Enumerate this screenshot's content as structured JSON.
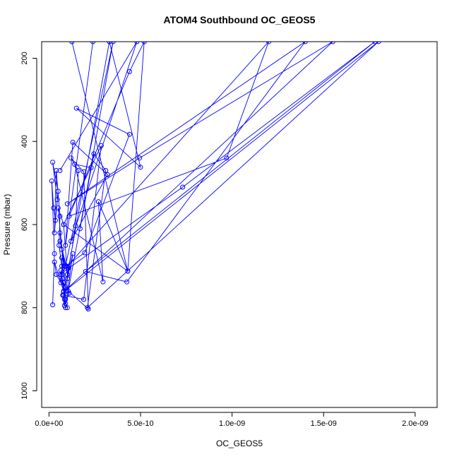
{
  "chart_data": {
    "type": "line",
    "title": "ATOM4 Southbound OC_GEOS5",
    "xlabel": "OC_GEOS5",
    "ylabel": "Pressure (mbar)",
    "xlim": [
      -4e-11,
      2.12e-09
    ],
    "ylim": [
      1040,
      160
    ],
    "y_reversed": true,
    "x_ticks": [
      0,
      5e-10,
      1e-09,
      1.5e-09,
      2e-09
    ],
    "x_tick_labels": [
      "0.0e+00",
      "5.0e-10",
      "1.0e-09",
      "1.5e-09",
      "2.0e-09"
    ],
    "y_ticks": [
      200,
      400,
      600,
      800,
      1000
    ],
    "y_tick_labels": [
      "200",
      "400",
      "600",
      "800",
      "1000"
    ],
    "grid": false,
    "legend": "none",
    "series_color": "#0000ff",
    "marker": "open-circle",
    "series": [
      {
        "x": [
          9e-11,
          1.3e-10,
          1e-10,
          1.45e-10,
          1.6e-10,
          1.2e-10,
          1.9e-10,
          2.15e-10,
          1.05e-10,
          2.3e-10,
          1.4e-10,
          2.95e-10,
          2.7e-10,
          4.3e-10,
          5.2e-10,
          4.4e-10,
          1.1e-10,
          9.7e-10,
          1.2e-09,
          6e-11,
          7.3e-10,
          1.78e-09,
          2e-10,
          4.25e-10,
          1.4e-09,
          1e-10,
          4.95e-10,
          1.55e-09,
          8e-11,
          1.8e-09,
          2.1e-10,
          3.1e-10,
          2.45e-10,
          1.7e-10,
          3.5e-10,
          9e-11,
          1.95e-10,
          4.4e-10,
          1.5e-10,
          5e-10,
          3.3e-10,
          8e-11,
          1.9e-10,
          2.85e-10,
          8e-11,
          4.3e-10,
          1.25e-10,
          2.4e-10,
          9e-11,
          1.3e-10,
          3.2e-10,
          1.2e-10,
          4.8e-10,
          6e-11
        ],
        "y": [
          800,
          670,
          730,
          603,
          470,
          440,
          473,
          803,
          760,
          463,
          455,
          738,
          545,
          712,
          160,
          232,
          580,
          440,
          160,
          720,
          510,
          160,
          713,
          738,
          160,
          550,
          440,
          160,
          762,
          160,
          800,
          470,
          430,
          610,
          160,
          700,
          668,
          383,
          320,
          462,
          160,
          770,
          780,
          410,
          600,
          712,
          160,
          160,
          650,
          402,
          480,
          640,
          160,
          470
        ]
      },
      {
        "x": [
          2e-11,
          3e-11,
          1.5e-11,
          2.5e-11,
          3.5e-11,
          4.5e-11,
          2e-11,
          5e-11,
          3e-11,
          4e-11,
          6e-11,
          5.5e-11,
          7e-11,
          6.5e-11,
          4e-11,
          3e-11,
          8e-11,
          7.5e-11,
          9e-11,
          8.5e-11,
          7e-11,
          9.5e-11,
          6e-11,
          1e-10,
          8e-11,
          5e-11,
          9e-11,
          7e-11,
          6e-11,
          8.5e-11,
          1.05e-10,
          9.5e-11,
          8e-11,
          1.1e-10,
          9e-11,
          7.5e-11,
          1e-10,
          8.5e-11,
          6.5e-11,
          7e-11
        ],
        "y": [
          793,
          670,
          495,
          560,
          590,
          540,
          450,
          520,
          620,
          470,
          580,
          650,
          700,
          740,
          720,
          690,
          760,
          730,
          780,
          795,
          680,
          700,
          640,
          720,
          600,
          560,
          750,
          660,
          620,
          700,
          705,
          760,
          740,
          765,
          790,
          770,
          800,
          780,
          710,
          720
        ]
      }
    ]
  }
}
